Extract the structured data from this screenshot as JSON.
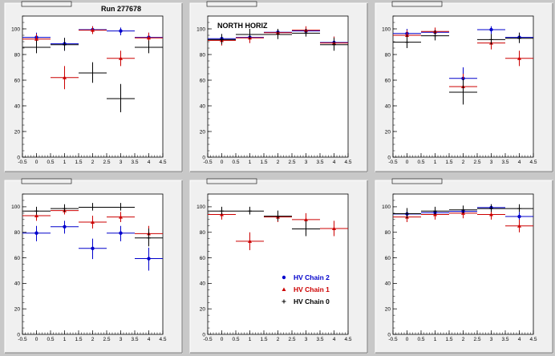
{
  "run_label": "Run 277678",
  "legend": {
    "placement": "bottom-right of panel 5",
    "entries": [
      {
        "label": "HV Chain 2",
        "color": "#0000cc",
        "marker": "dot"
      },
      {
        "label": "HV Chain 1",
        "color": "#cc0000",
        "marker": "triangle"
      },
      {
        "label": "HV Chain 0",
        "color": "#000000",
        "marker": "plus"
      }
    ]
  },
  "colors": {
    "chain2": "#0000cc",
    "chain1": "#cc0000",
    "chain0": "#000000"
  },
  "chart_data": [
    {
      "type": "scatter",
      "title": "",
      "annotation": "Run 277678",
      "xlim": [
        -0.5,
        4.5
      ],
      "ylim": [
        0,
        110
      ],
      "xticks": [
        "-0.5",
        "0",
        "0.5",
        "1",
        "1.5",
        "2",
        "2.5",
        "3",
        "3.5",
        "4",
        "4.5"
      ],
      "yticks": [
        "0",
        "20",
        "40",
        "60",
        "80",
        "100"
      ],
      "series": [
        {
          "name": "HV Chain 2",
          "x": [
            0,
            1,
            2,
            3,
            4
          ],
          "y": [
            93,
            88,
            99,
            98,
            93
          ]
        },
        {
          "name": "HV Chain 1",
          "x": [
            0,
            1,
            2,
            3,
            4
          ],
          "y": [
            92,
            62,
            99,
            77,
            93
          ]
        },
        {
          "name": "HV Chain 0",
          "x": [
            0,
            1,
            2,
            3,
            4
          ],
          "y": [
            86,
            88,
            66,
            46,
            86
          ]
        }
      ]
    },
    {
      "type": "scatter",
      "title": "",
      "annotation": "NORTH HORIZ",
      "xlim": [
        -0.5,
        4.5
      ],
      "ylim": [
        0,
        110
      ],
      "xticks": [
        "-0.5",
        "0",
        "0.5",
        "1",
        "1.5",
        "2",
        "2.5",
        "3",
        "3.5",
        "4",
        "4.5"
      ],
      "yticks": [
        "0",
        "20",
        "40",
        "60",
        "80",
        "100"
      ],
      "series": [
        {
          "name": "HV Chain 2",
          "x": [
            0,
            1,
            2,
            3,
            4
          ],
          "y": [
            92,
            93,
            97,
            98,
            89
          ]
        },
        {
          "name": "HV Chain 1",
          "x": [
            0,
            1,
            2,
            3,
            4
          ],
          "y": [
            91,
            93,
            97,
            99,
            89
          ]
        },
        {
          "name": "HV Chain 0",
          "x": [
            0,
            1,
            2,
            3,
            4
          ],
          "y": [
            92,
            96,
            96,
            97,
            88
          ]
        }
      ]
    },
    {
      "type": "scatter",
      "title": "",
      "annotation": "",
      "xlim": [
        -0.5,
        4.5
      ],
      "ylim": [
        0,
        110
      ],
      "xticks": [
        "-0.5",
        "0",
        "0.5",
        "1",
        "1.5",
        "2",
        "2.5",
        "3",
        "3.5",
        "4",
        "4.5"
      ],
      "yticks": [
        "0",
        "20",
        "40",
        "60",
        "80",
        "100"
      ],
      "series": [
        {
          "name": "HV Chain 2",
          "x": [
            0,
            1,
            2,
            3,
            4
          ],
          "y": [
            96,
            97,
            61,
            99,
            93
          ]
        },
        {
          "name": "HV Chain 1",
          "x": [
            0,
            1,
            2,
            3,
            4
          ],
          "y": [
            95,
            98,
            55,
            89,
            77
          ]
        },
        {
          "name": "HV Chain 0",
          "x": [
            0,
            1,
            2,
            3,
            4
          ],
          "y": [
            90,
            95,
            51,
            92,
            93
          ]
        }
      ]
    },
    {
      "type": "scatter",
      "title": "",
      "annotation": "",
      "xlim": [
        -0.5,
        4.5
      ],
      "ylim": [
        0,
        110
      ],
      "xticks": [
        "-0.5",
        "0",
        "0.5",
        "1",
        "1.5",
        "2",
        "2.5",
        "3",
        "3.5",
        "4",
        "4.5"
      ],
      "yticks": [
        "0",
        "20",
        "40",
        "60",
        "80",
        "100"
      ],
      "series": [
        {
          "name": "HV Chain 2",
          "x": [
            0,
            1,
            2,
            3,
            4
          ],
          "y": [
            79,
            84,
            67,
            79,
            59
          ]
        },
        {
          "name": "HV Chain 1",
          "x": [
            0,
            1,
            2,
            3,
            4
          ],
          "y": [
            93,
            97,
            88,
            92,
            79
          ]
        },
        {
          "name": "HV Chain 0",
          "x": [
            0,
            1,
            2,
            3,
            4
          ],
          "y": [
            97,
            99,
            100,
            100,
            76
          ]
        }
      ]
    },
    {
      "type": "scatter",
      "title": "",
      "annotation": "",
      "xlim": [
        -0.5,
        4.5
      ],
      "ylim": [
        0,
        110
      ],
      "xticks": [
        "-0.5",
        "0",
        "0.5",
        "1",
        "1.5",
        "2",
        "2.5",
        "3",
        "3.5",
        "4",
        "4.5"
      ],
      "yticks": [
        "0",
        "20",
        "40",
        "60",
        "80",
        "100"
      ],
      "series": [
        {
          "name": "HV Chain 2",
          "x": [],
          "y": []
        },
        {
          "name": "HV Chain 1",
          "x": [
            0,
            1,
            2,
            3,
            4
          ],
          "y": [
            94,
            73,
            92,
            90,
            83
          ]
        },
        {
          "name": "HV Chain 0",
          "x": [
            0,
            1,
            2,
            3
          ],
          "y": [
            97,
            97,
            93,
            83
          ]
        }
      ]
    },
    {
      "type": "scatter",
      "title": "",
      "annotation": "",
      "xlim": [
        -0.5,
        4.5
      ],
      "ylim": [
        0,
        110
      ],
      "xticks": [
        "-0.5",
        "0",
        "0.5",
        "1",
        "1.5",
        "2",
        "2.5",
        "3",
        "3.5",
        "4",
        "4.5"
      ],
      "yticks": [
        "0",
        "20",
        "40",
        "60",
        "80",
        "100"
      ],
      "series": [
        {
          "name": "HV Chain 2",
          "x": [
            0,
            1,
            2,
            3,
            4
          ],
          "y": [
            94,
            95,
            96,
            99,
            92
          ]
        },
        {
          "name": "HV Chain 1",
          "x": [
            0,
            1,
            2,
            3,
            4
          ],
          "y": [
            92,
            94,
            95,
            94,
            85
          ]
        },
        {
          "name": "HV Chain 0",
          "x": [
            0,
            1,
            2,
            3,
            4
          ],
          "y": [
            95,
            97,
            98,
            99,
            99
          ]
        }
      ]
    }
  ]
}
